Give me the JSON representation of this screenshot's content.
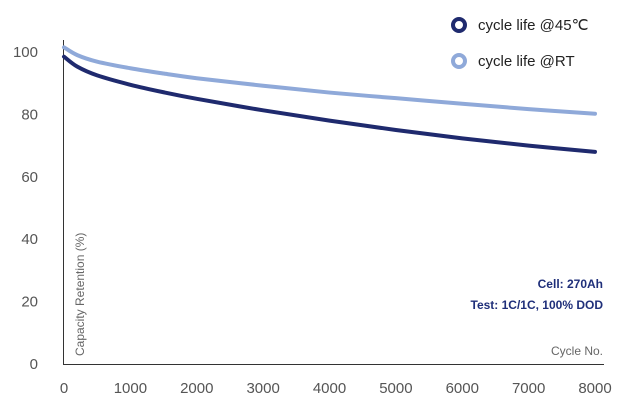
{
  "chart_data": {
    "type": "line",
    "title": "",
    "xlabel": "Cycle No.",
    "ylabel": "Capacity Retention (%)",
    "xlim": [
      0,
      8000
    ],
    "ylim": [
      0,
      100
    ],
    "x_ticks": [
      "0",
      "1000",
      "2000",
      "3000",
      "4000",
      "5000",
      "6000",
      "7000",
      "8000"
    ],
    "y_ticks": [
      "0",
      "20",
      "40",
      "60",
      "80",
      "100"
    ],
    "grid": false,
    "legend_position": "top-right",
    "series": [
      {
        "name": "cycle life @45℃",
        "color": "#1f2a6e",
        "x": [
          0,
          200,
          500,
          1000,
          1500,
          2000,
          3000,
          4000,
          5000,
          6000,
          7000,
          8000
        ],
        "values": [
          98.5,
          95.3,
          92.5,
          89.5,
          87.1,
          85.0,
          81.3,
          78.0,
          75.0,
          72.3,
          70.0,
          68.0
        ]
      },
      {
        "name": "cycle life @RT",
        "color": "#8fa9d9",
        "x": [
          0,
          200,
          500,
          1000,
          1500,
          2000,
          3000,
          4000,
          5000,
          6000,
          7000,
          8000
        ],
        "values": [
          101.5,
          99.0,
          96.9,
          94.8,
          93.1,
          91.6,
          89.2,
          87.0,
          85.2,
          83.4,
          81.7,
          80.2
        ]
      }
    ],
    "annotations": [
      "Cell: 270Ah",
      "Test: 1C/1C, 100% DOD"
    ]
  }
}
